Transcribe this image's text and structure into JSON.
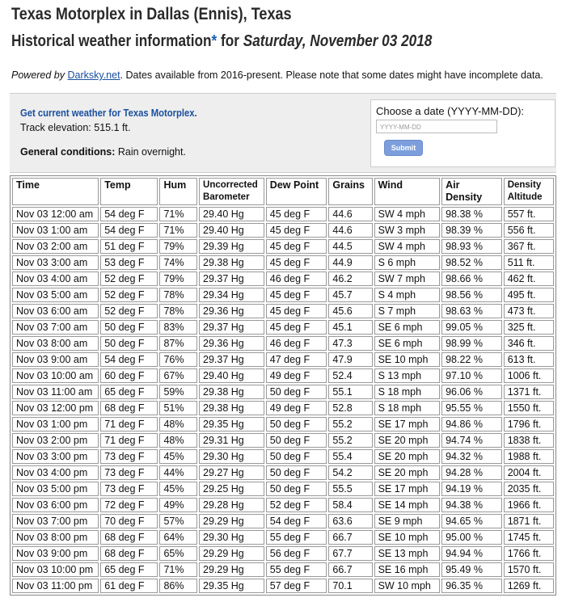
{
  "header": {
    "title": "Texas Motorplex in Dallas (Ennis), Texas",
    "subtitle_start": "Historical weather information",
    "subtitle_star": "*",
    "subtitle_for": "for",
    "subtitle_date": "Saturday, November 03 2018"
  },
  "powered": {
    "prefix": "Powered by",
    "link": "Darksky.net",
    "rest": ". Dates available from 2016-present. Please note that some dates might have incomplete data."
  },
  "panel": {
    "current_link": "Get current weather for Texas Motorplex.",
    "elevation": "Track elevation: 515.1 ft.",
    "conditions_label": "General conditions:",
    "conditions_value": "Rain overnight.",
    "date_label": "Choose a date (YYYY-MM-DD):",
    "date_placeholder": "YYYY-MM-DD",
    "submit": "Submit"
  },
  "table": {
    "columns": [
      "Time",
      "Temp",
      "Hum",
      "Uncorrected Barometer",
      "Dew Point",
      "Grains",
      "Wind",
      "Air Density",
      "Density Altitude"
    ],
    "rows": [
      [
        "Nov 03 12:00 am",
        "54 deg F",
        "71%",
        "29.40 Hg",
        "45 deg F",
        "44.6",
        "SW 4 mph",
        "98.38 %",
        "557 ft."
      ],
      [
        "Nov 03 1:00 am",
        "54 deg F",
        "71%",
        "29.40 Hg",
        "45 deg F",
        "44.6",
        "SW 3 mph",
        "98.39 %",
        "556 ft."
      ],
      [
        "Nov 03 2:00 am",
        "51 deg F",
        "79%",
        "29.39 Hg",
        "45 deg F",
        "44.5",
        "SW 4 mph",
        "98.93 %",
        "367 ft."
      ],
      [
        "Nov 03 3:00 am",
        "53 deg F",
        "74%",
        "29.38 Hg",
        "45 deg F",
        "44.9",
        "S 6 mph",
        "98.52 %",
        "511 ft."
      ],
      [
        "Nov 03 4:00 am",
        "52 deg F",
        "79%",
        "29.37 Hg",
        "46 deg F",
        "46.2",
        "SW 7 mph",
        "98.66 %",
        "462 ft."
      ],
      [
        "Nov 03 5:00 am",
        "52 deg F",
        "78%",
        "29.34 Hg",
        "45 deg F",
        "45.7",
        "S 4 mph",
        "98.56 %",
        "495 ft."
      ],
      [
        "Nov 03 6:00 am",
        "52 deg F",
        "78%",
        "29.36 Hg",
        "45 deg F",
        "45.6",
        "S 7 mph",
        "98.63 %",
        "473 ft."
      ],
      [
        "Nov 03 7:00 am",
        "50 deg F",
        "83%",
        "29.37 Hg",
        "45 deg F",
        "45.1",
        "SE 6 mph",
        "99.05 %",
        "325 ft."
      ],
      [
        "Nov 03 8:00 am",
        "50 deg F",
        "87%",
        "29.36 Hg",
        "46 deg F",
        "47.3",
        "SE 6 mph",
        "98.99 %",
        "346 ft."
      ],
      [
        "Nov 03 9:00 am",
        "54 deg F",
        "76%",
        "29.37 Hg",
        "47 deg F",
        "47.9",
        "SE 10 mph",
        "98.22 %",
        "613 ft."
      ],
      [
        "Nov 03 10:00 am",
        "60 deg F",
        "67%",
        "29.40 Hg",
        "49 deg F",
        "52.4",
        "S 13 mph",
        "97.10 %",
        "1006 ft."
      ],
      [
        "Nov 03 11:00 am",
        "65 deg F",
        "59%",
        "29.38 Hg",
        "50 deg F",
        "55.1",
        "S 18 mph",
        "96.06 %",
        "1371 ft."
      ],
      [
        "Nov 03 12:00 pm",
        "68 deg F",
        "51%",
        "29.38 Hg",
        "49 deg F",
        "52.8",
        "S 18 mph",
        "95.55 %",
        "1550 ft."
      ],
      [
        "Nov 03 1:00 pm",
        "71 deg F",
        "48%",
        "29.35 Hg",
        "50 deg F",
        "55.2",
        "SE 17 mph",
        "94.86 %",
        "1796 ft."
      ],
      [
        "Nov 03 2:00 pm",
        "71 deg F",
        "48%",
        "29.31 Hg",
        "50 deg F",
        "55.2",
        "SE 20 mph",
        "94.74 %",
        "1838 ft."
      ],
      [
        "Nov 03 3:00 pm",
        "73 deg F",
        "45%",
        "29.30 Hg",
        "50 deg F",
        "55.4",
        "SE 20 mph",
        "94.32 %",
        "1988 ft."
      ],
      [
        "Nov 03 4:00 pm",
        "73 deg F",
        "44%",
        "29.27 Hg",
        "50 deg F",
        "54.2",
        "SE 20 mph",
        "94.28 %",
        "2004 ft."
      ],
      [
        "Nov 03 5:00 pm",
        "73 deg F",
        "45%",
        "29.25 Hg",
        "50 deg F",
        "55.5",
        "SE 17 mph",
        "94.19 %",
        "2035 ft."
      ],
      [
        "Nov 03 6:00 pm",
        "72 deg F",
        "49%",
        "29.28 Hg",
        "52 deg F",
        "58.4",
        "SE 14 mph",
        "94.38 %",
        "1966 ft."
      ],
      [
        "Nov 03 7:00 pm",
        "70 deg F",
        "57%",
        "29.29 Hg",
        "54 deg F",
        "63.6",
        "SE 9 mph",
        "94.65 %",
        "1871 ft."
      ],
      [
        "Nov 03 8:00 pm",
        "68 deg F",
        "64%",
        "29.30 Hg",
        "55 deg F",
        "66.7",
        "SE 10 mph",
        "95.00 %",
        "1745 ft."
      ],
      [
        "Nov 03 9:00 pm",
        "68 deg F",
        "65%",
        "29.29 Hg",
        "56 deg F",
        "67.7",
        "SE 13 mph",
        "94.94 %",
        "1766 ft."
      ],
      [
        "Nov 03 10:00 pm",
        "65 deg F",
        "71%",
        "29.29 Hg",
        "55 deg F",
        "66.7",
        "SE 16 mph",
        "95.49 %",
        "1570 ft."
      ],
      [
        "Nov 03 11:00 pm",
        "61 deg F",
        "86%",
        "29.35 Hg",
        "57 deg F",
        "70.1",
        "SW 10 mph",
        "96.35 %",
        "1269 ft."
      ]
    ]
  }
}
